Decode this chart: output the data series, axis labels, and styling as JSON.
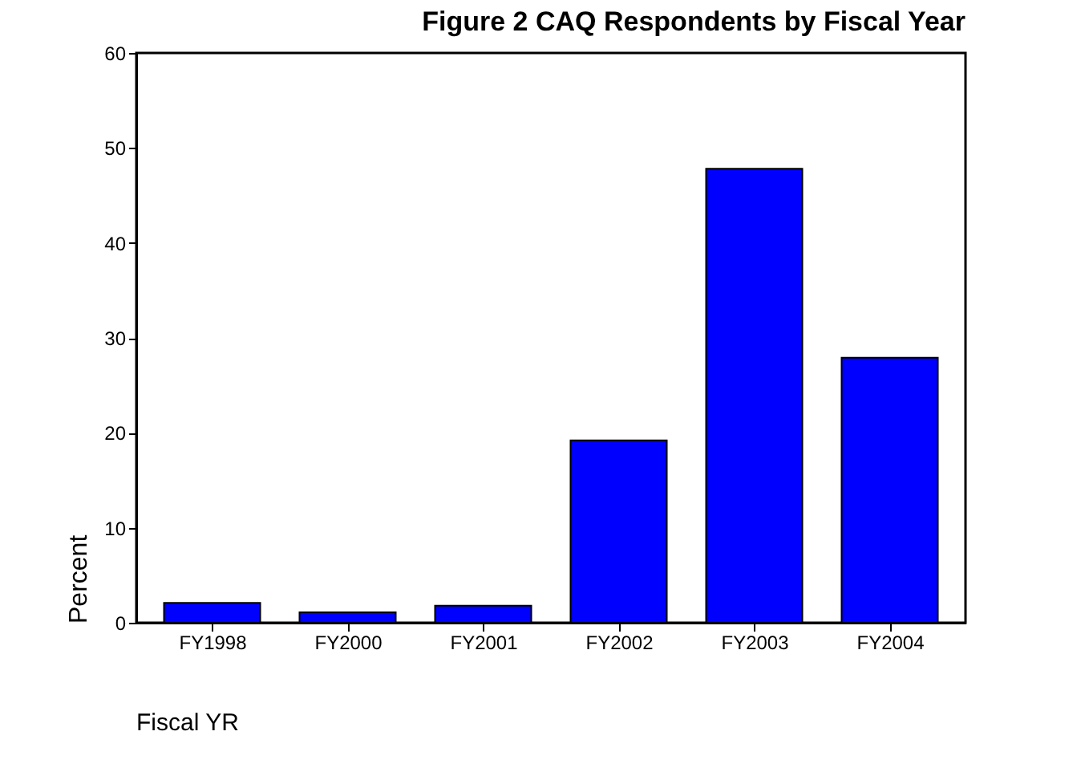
{
  "chart_data": {
    "type": "bar",
    "title": "Figure 2        CAQ Respondents by Fiscal Year",
    "xlabel": "Fiscal YR",
    "ylabel": "Percent",
    "categories": [
      "FY1998",
      "FY2000",
      "FY2001",
      "FY2002",
      "FY2003",
      "FY2004"
    ],
    "values": [
      2.1,
      1.1,
      1.8,
      19.2,
      47.8,
      27.9
    ],
    "color": "#0000ff",
    "ylim": [
      0,
      60
    ],
    "yticks": [
      0,
      10,
      20,
      30,
      40,
      50,
      60
    ],
    "grid": false
  }
}
